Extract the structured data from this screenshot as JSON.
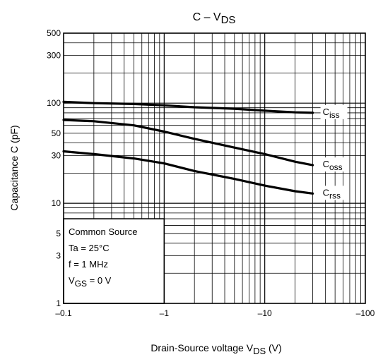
{
  "chart_data": {
    "type": "line",
    "title_main": "C – V",
    "title_sub": "DS",
    "xlabel_main": "Drain-Source voltage   V",
    "xlabel_sub": "DS",
    "xlabel_unit": "(V)",
    "ylabel": "Capacitance   C   (pF)",
    "x_scale": "log",
    "y_scale": "log",
    "xlim": [
      -0.1,
      -100
    ],
    "ylim": [
      1,
      500
    ],
    "grid": true,
    "x_ticks": [
      {
        "value": -0.1,
        "label": "–0.1"
      },
      {
        "value": -1,
        "label": "–1"
      },
      {
        "value": -10,
        "label": "–10"
      },
      {
        "value": -100,
        "label": "–100"
      }
    ],
    "y_ticks": [
      {
        "value": 1,
        "label": "1"
      },
      {
        "value": 3,
        "label": "3"
      },
      {
        "value": 5,
        "label": "5"
      },
      {
        "value": 10,
        "label": "10"
      },
      {
        "value": 30,
        "label": "30"
      },
      {
        "value": 50,
        "label": "50"
      },
      {
        "value": 100,
        "label": "100"
      },
      {
        "value": 300,
        "label": "300"
      },
      {
        "value": 500,
        "label": "500"
      }
    ],
    "series": [
      {
        "name": "iss",
        "label_main": "C",
        "label_sub": "iss",
        "x": [
          -0.1,
          -0.2,
          -0.5,
          -1,
          -2,
          -5,
          -10,
          -20,
          -30
        ],
        "y": [
          103,
          100,
          98,
          95,
          91,
          88,
          84,
          81,
          80
        ]
      },
      {
        "name": "oss",
        "label_main": "C",
        "label_sub": "oss",
        "x": [
          -0.1,
          -0.2,
          -0.5,
          -1,
          -2,
          -5,
          -10,
          -20,
          -30
        ],
        "y": [
          68,
          66,
          60,
          52,
          44,
          36,
          31,
          26,
          24
        ]
      },
      {
        "name": "rss",
        "label_main": "C",
        "label_sub": "rss",
        "x": [
          -0.1,
          -0.2,
          -0.5,
          -1,
          -2,
          -5,
          -10,
          -20,
          -30
        ],
        "y": [
          33,
          31,
          28,
          25,
          21,
          17.5,
          15,
          13.2,
          12.5
        ]
      }
    ],
    "conditions": [
      {
        "main": "Common Source",
        "sub": "",
        "tail": ""
      },
      {
        "main": "Ta = 25°C",
        "sub": "",
        "tail": ""
      },
      {
        "main": "f = 1 MHz",
        "sub": "",
        "tail": ""
      },
      {
        "main": "V",
        "sub": "GS",
        "tail": " = 0 V"
      }
    ]
  }
}
